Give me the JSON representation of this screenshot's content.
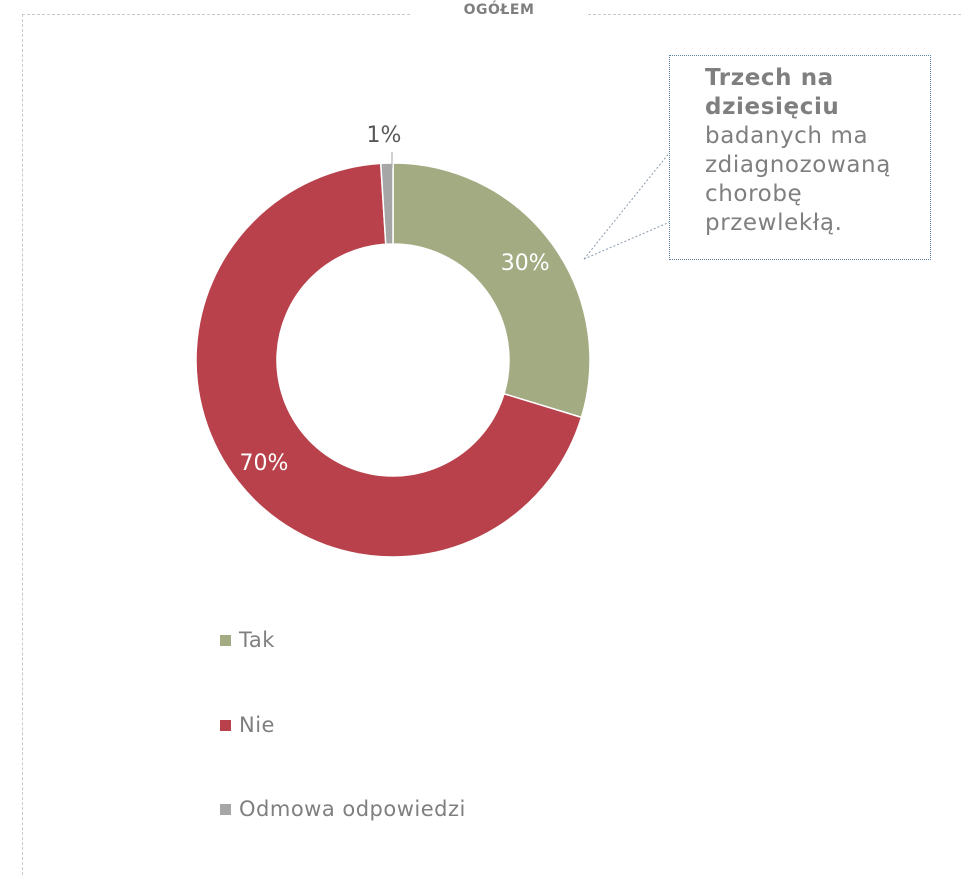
{
  "panel": {
    "title": "OGÓŁEM"
  },
  "callout": {
    "bold_text": "Trzech na dziesięciu",
    "text": "badanych ma zdiagnozowaną chorobę przewlekłą."
  },
  "chart_data": {
    "type": "pie",
    "variant": "donut",
    "categories": [
      "Tak",
      "Nie",
      "Odmowa odpowiedzi"
    ],
    "values": [
      30,
      70,
      1
    ],
    "value_labels": [
      "30%",
      "70%",
      "1%"
    ],
    "colors": [
      "#a3ab83",
      "#b8414b",
      "#a6a6a6"
    ],
    "legend_position": "bottom-left",
    "title": ""
  }
}
